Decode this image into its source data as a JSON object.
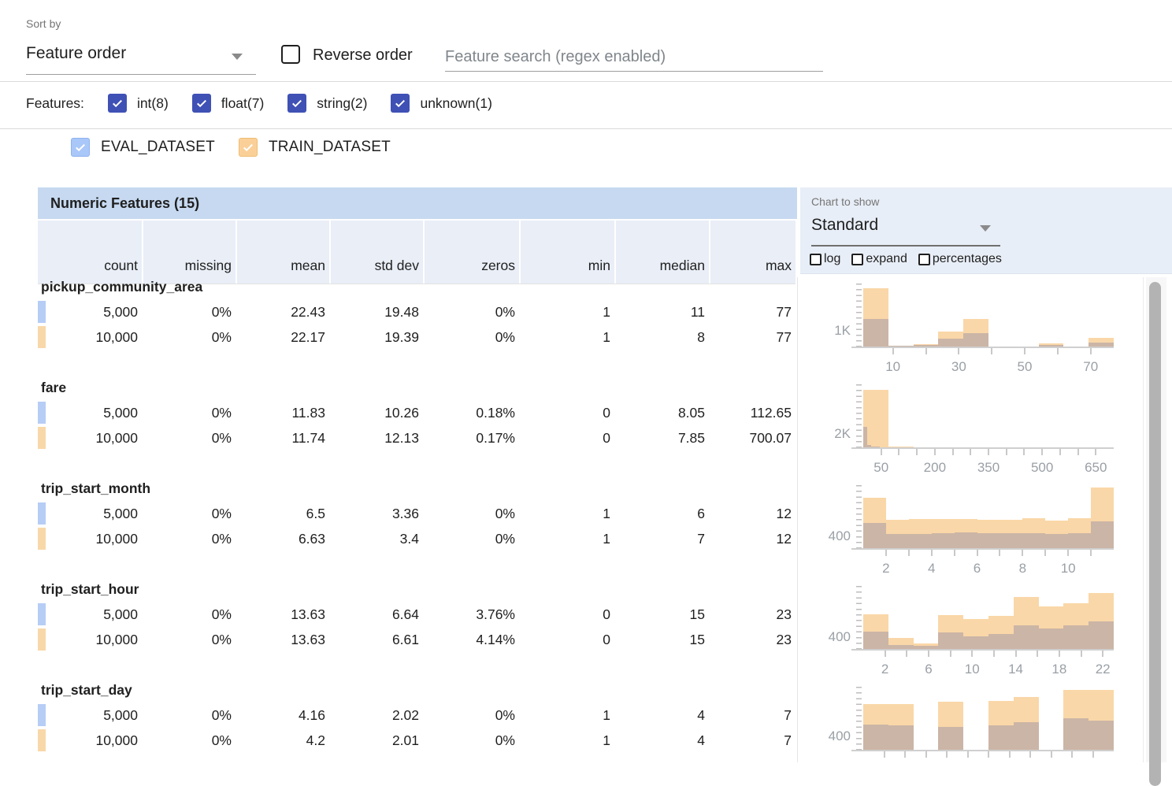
{
  "toolbar": {
    "sort_by_label": "Sort by",
    "sort_by_value": "Feature order",
    "reverse_order_label": "Reverse order",
    "search_placeholder": "Feature search (regex enabled)"
  },
  "features_filter": {
    "label": "Features:",
    "items": [
      {
        "label": "int(8)",
        "checked": true
      },
      {
        "label": "float(7)",
        "checked": true
      },
      {
        "label": "string(2)",
        "checked": true
      },
      {
        "label": "unknown(1)",
        "checked": true
      }
    ]
  },
  "datasets": [
    {
      "label": "EVAL_DATASET",
      "checked": true,
      "color": "#a9c7f8"
    },
    {
      "label": "TRAIN_DATASET",
      "checked": true,
      "color": "#fbd098"
    }
  ],
  "table": {
    "title": "Numeric Features (15)",
    "columns": [
      "count",
      "missing",
      "mean",
      "std dev",
      "zeros",
      "min",
      "median",
      "max"
    ],
    "features": [
      {
        "name": "pickup_community_area",
        "rows": [
          {
            "dataset": "EVAL_DATASET",
            "cells": [
              "5,000",
              "0%",
              "22.43",
              "19.48",
              "0%",
              "1",
              "11",
              "77"
            ]
          },
          {
            "dataset": "TRAIN_DATASET",
            "cells": [
              "10,000",
              "0%",
              "22.17",
              "19.39",
              "0%",
              "1",
              "8",
              "77"
            ]
          }
        ]
      },
      {
        "name": "fare",
        "rows": [
          {
            "dataset": "EVAL_DATASET",
            "cells": [
              "5,000",
              "0%",
              "11.83",
              "10.26",
              "0.18%",
              "0",
              "8.05",
              "112.65"
            ]
          },
          {
            "dataset": "TRAIN_DATASET",
            "cells": [
              "10,000",
              "0%",
              "11.74",
              "12.13",
              "0.17%",
              "0",
              "7.85",
              "700.07"
            ]
          }
        ]
      },
      {
        "name": "trip_start_month",
        "rows": [
          {
            "dataset": "EVAL_DATASET",
            "cells": [
              "5,000",
              "0%",
              "6.5",
              "3.36",
              "0%",
              "1",
              "6",
              "12"
            ]
          },
          {
            "dataset": "TRAIN_DATASET",
            "cells": [
              "10,000",
              "0%",
              "6.63",
              "3.4",
              "0%",
              "1",
              "7",
              "12"
            ]
          }
        ]
      },
      {
        "name": "trip_start_hour",
        "rows": [
          {
            "dataset": "EVAL_DATASET",
            "cells": [
              "5,000",
              "0%",
              "13.63",
              "6.64",
              "3.76%",
              "0",
              "15",
              "23"
            ]
          },
          {
            "dataset": "TRAIN_DATASET",
            "cells": [
              "10,000",
              "0%",
              "13.63",
              "6.61",
              "4.14%",
              "0",
              "15",
              "23"
            ]
          }
        ]
      },
      {
        "name": "trip_start_day",
        "rows": [
          {
            "dataset": "EVAL_DATASET",
            "cells": [
              "5,000",
              "0%",
              "4.16",
              "2.02",
              "0%",
              "1",
              "4",
              "7"
            ]
          },
          {
            "dataset": "TRAIN_DATASET",
            "cells": [
              "10,000",
              "0%",
              "4.2",
              "2.01",
              "0%",
              "1",
              "4",
              "7"
            ]
          }
        ]
      }
    ]
  },
  "chart_controls": {
    "label": "Chart to show",
    "value": "Standard",
    "options": [
      "log",
      "expand",
      "percentages"
    ]
  },
  "chart_data": [
    {
      "type": "bar",
      "feature": "pickup_community_area",
      "x_range": [
        1,
        77
      ],
      "y_max": 3840,
      "y_tick": {
        "value": 1000,
        "label": "1K"
      },
      "x_ticks": [
        10,
        20,
        30,
        40,
        50,
        60,
        70
      ],
      "x_labels": [
        10,
        30,
        50,
        70
      ],
      "series": [
        {
          "name": "TRAIN_DATASET",
          "color": "#fad7a8",
          "bins": [
            [
              1,
              8.6,
              3560
            ],
            [
              8.6,
              16.2,
              60
            ],
            [
              16.2,
              23.8,
              150
            ],
            [
              23.8,
              31.4,
              900
            ],
            [
              31.4,
              39,
              1680
            ],
            [
              54.2,
              61.8,
              200
            ],
            [
              69.4,
              77,
              510
            ]
          ]
        },
        {
          "name": "EVAL_DATASET_overlap",
          "color": "#cbb5a6",
          "bins": [
            [
              1,
              8.6,
              1700
            ],
            [
              8.6,
              16.2,
              30
            ],
            [
              16.2,
              23.8,
              75
            ],
            [
              23.8,
              31.4,
              490
            ],
            [
              31.4,
              39,
              825
            ],
            [
              54.2,
              61.8,
              100
            ],
            [
              69.4,
              77,
              260
            ]
          ]
        }
      ]
    },
    {
      "type": "bar",
      "feature": "fare",
      "x_range": [
        0,
        700
      ],
      "y_max": 9125,
      "y_tick": {
        "value": 2000,
        "label": "2K"
      },
      "x_ticks": [
        50,
        100,
        150,
        200,
        250,
        300,
        350,
        400,
        450,
        500,
        550,
        600,
        650
      ],
      "x_labels": [
        50,
        200,
        350,
        500,
        650
      ],
      "series": [
        {
          "name": "TRAIN_DATASET",
          "color": "#fad7a8",
          "bins": [
            [
              0,
              70,
              8300
            ],
            [
              70,
              140,
              80
            ]
          ]
        },
        {
          "name": "EVAL_DATASET_overlap",
          "color": "#cbb5a6",
          "bins": [
            [
              0,
              11.3,
              2960
            ],
            [
              11.3,
              22.6,
              400
            ],
            [
              22.6,
              33.9,
              170
            ],
            [
              33.9,
              45.2,
              70
            ]
          ]
        }
      ]
    },
    {
      "type": "bar",
      "feature": "trip_start_month",
      "x_range": [
        1,
        12
      ],
      "y_max": 2040,
      "y_tick": {
        "value": 400,
        "label": "400"
      },
      "x_ticks": [
        2,
        3,
        4,
        5,
        6,
        7,
        8,
        9,
        10,
        11
      ],
      "x_labels": [
        2,
        4,
        6,
        8,
        10
      ],
      "series": [
        {
          "name": "TRAIN_DATASET",
          "color": "#fad7a8",
          "bins": [
            [
              1,
              2,
              1620
            ],
            [
              2,
              3,
              930
            ],
            [
              3,
              4,
              950
            ],
            [
              4,
              5,
              950
            ],
            [
              5,
              6,
              940
            ],
            [
              6,
              7,
              930
            ],
            [
              7,
              8,
              930
            ],
            [
              8,
              9,
              960
            ],
            [
              9,
              10,
              900
            ],
            [
              10,
              11,
              980
            ],
            [
              11,
              12,
              1960
            ]
          ]
        },
        {
          "name": "EVAL_DATASET_overlap",
          "color": "#cbb5a6",
          "bins": [
            [
              1,
              2,
              820
            ],
            [
              2,
              3,
              470
            ],
            [
              3,
              4,
              470
            ],
            [
              4,
              5,
              490
            ],
            [
              5,
              6,
              500
            ],
            [
              6,
              7,
              490
            ],
            [
              7,
              8,
              480
            ],
            [
              8,
              9,
              480
            ],
            [
              9,
              10,
              470
            ],
            [
              10,
              11,
              480
            ],
            [
              11,
              12,
              870
            ]
          ]
        }
      ]
    },
    {
      "type": "bar",
      "feature": "trip_start_hour",
      "x_range": [
        0,
        23
      ],
      "y_max": 2040,
      "y_tick": {
        "value": 400,
        "label": "400"
      },
      "x_ticks": [
        2,
        4,
        6,
        8,
        10,
        12,
        14,
        16,
        18,
        20,
        22
      ],
      "x_labels": [
        2,
        6,
        10,
        14,
        18,
        22
      ],
      "series": [
        {
          "name": "TRAIN_DATASET",
          "color": "#fad7a8",
          "bins": [
            [
              0,
              2.3,
              1120
            ],
            [
              2.3,
              4.6,
              355
            ],
            [
              4.6,
              6.9,
              170
            ],
            [
              6.9,
              9.2,
              1100
            ],
            [
              9.2,
              11.5,
              960
            ],
            [
              11.5,
              13.8,
              1070
            ],
            [
              13.8,
              16.1,
              1690
            ],
            [
              16.1,
              18.4,
              1365
            ],
            [
              18.4,
              20.7,
              1475
            ],
            [
              20.7,
              23,
              1800
            ]
          ]
        },
        {
          "name": "EVAL_DATASET_overlap",
          "color": "#cbb5a6",
          "bins": [
            [
              0,
              2.3,
              560
            ],
            [
              2.3,
              4.6,
              140
            ],
            [
              4.6,
              6.9,
              110
            ],
            [
              6.9,
              9.2,
              540
            ],
            [
              9.2,
              11.5,
              400
            ],
            [
              11.5,
              13.8,
              495
            ],
            [
              13.8,
              16.1,
              775
            ],
            [
              16.1,
              18.4,
              663
            ],
            [
              18.4,
              20.7,
              756
            ],
            [
              20.7,
              23,
              890
            ]
          ]
        }
      ]
    },
    {
      "type": "bar",
      "feature": "trip_start_day",
      "x_range": [
        1,
        7
      ],
      "y_max": 1750,
      "y_tick": {
        "value": 400,
        "label": "400"
      },
      "x_ticks": [
        1.5,
        2,
        2.5,
        3,
        3.5,
        4,
        4.5,
        5,
        5.5,
        6,
        6.5
      ],
      "x_labels": [],
      "series": [
        {
          "name": "TRAIN_DATASET",
          "color": "#fad7a8",
          "bins": [
            [
              1,
              1.6,
              1280
            ],
            [
              1.6,
              2.2,
              1275
            ],
            [
              2.8,
              3.4,
              1340
            ],
            [
              4,
              4.6,
              1360
            ],
            [
              4.6,
              5.2,
              1470
            ],
            [
              5.8,
              6.4,
              1670
            ],
            [
              6.4,
              7,
              1655
            ]
          ]
        },
        {
          "name": "EVAL_DATASET_overlap",
          "color": "#cbb5a6",
          "bins": [
            [
              1,
              1.6,
              695
            ],
            [
              1.6,
              2.2,
              680
            ],
            [
              2.8,
              3.4,
              630
            ],
            [
              4,
              4.6,
              680
            ],
            [
              4.6,
              5.2,
              760
            ],
            [
              5.8,
              6.4,
              865
            ],
            [
              6.4,
              7,
              816
            ]
          ]
        }
      ]
    }
  ],
  "colors": {
    "accent_indigo": "#3f51b5",
    "eval_blue": "#b6cdf5",
    "train_orange": "#f8d8a9",
    "hist_train": "#fad7a8",
    "hist_overlap": "#cbb5a6",
    "table_title_bg": "#c6d9f0",
    "header_cell_bg": "#e9eef7",
    "chart_panel_bg": "#e8eef7"
  }
}
